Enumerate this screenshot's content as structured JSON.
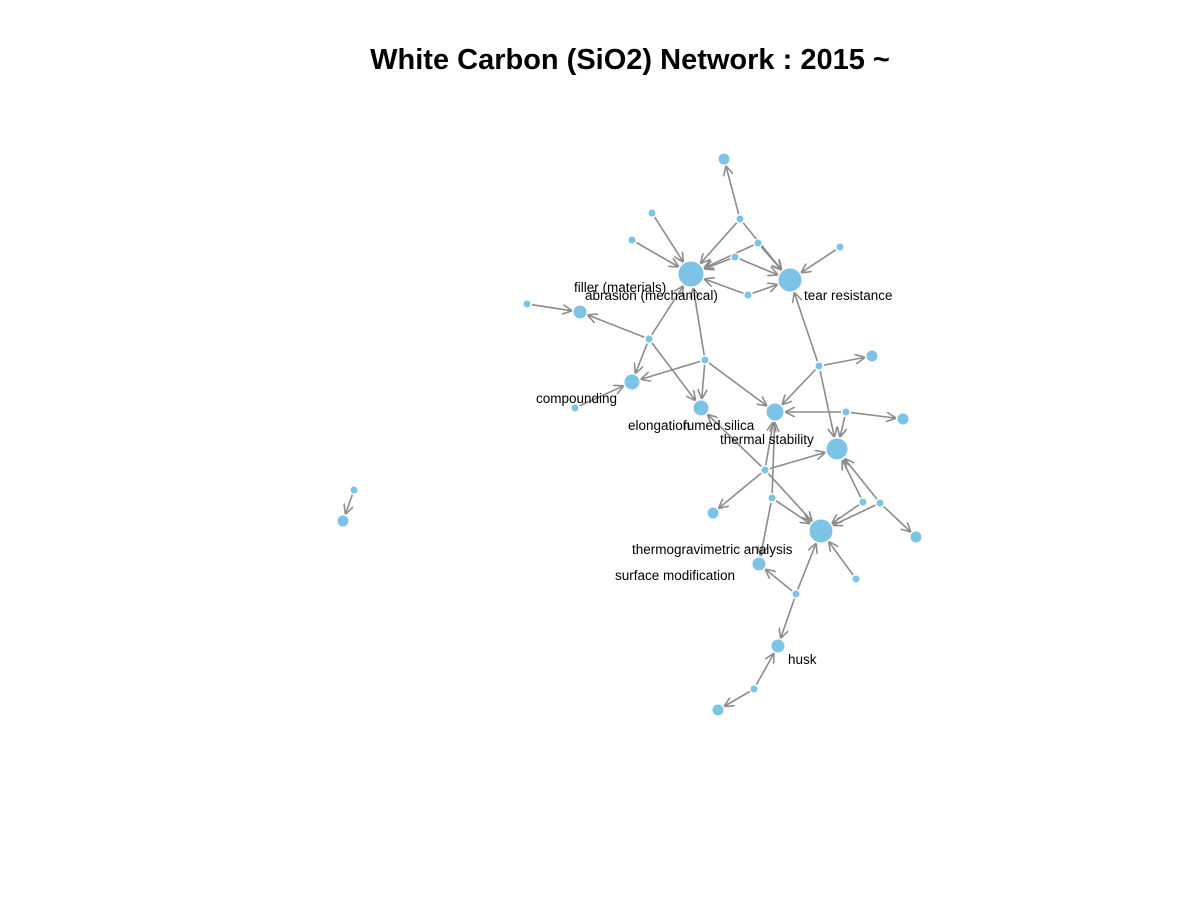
{
  "title": "White Carbon (SiO2) Network : 2015 ~",
  "colors": {
    "node": "#7cc3e6",
    "edge": "#8c8c8c"
  },
  "labels": {
    "filler": "filler (materials)",
    "abrasion": "abrasion (mechanical)",
    "tear": "tear resistance",
    "compounding": "compounding",
    "elongation": "elongation",
    "fumed": "fumed silica",
    "thermal": "thermal stability",
    "tga": "thermogravimetric analysis",
    "surface": "surface modification",
    "husk": "husk"
  }
}
